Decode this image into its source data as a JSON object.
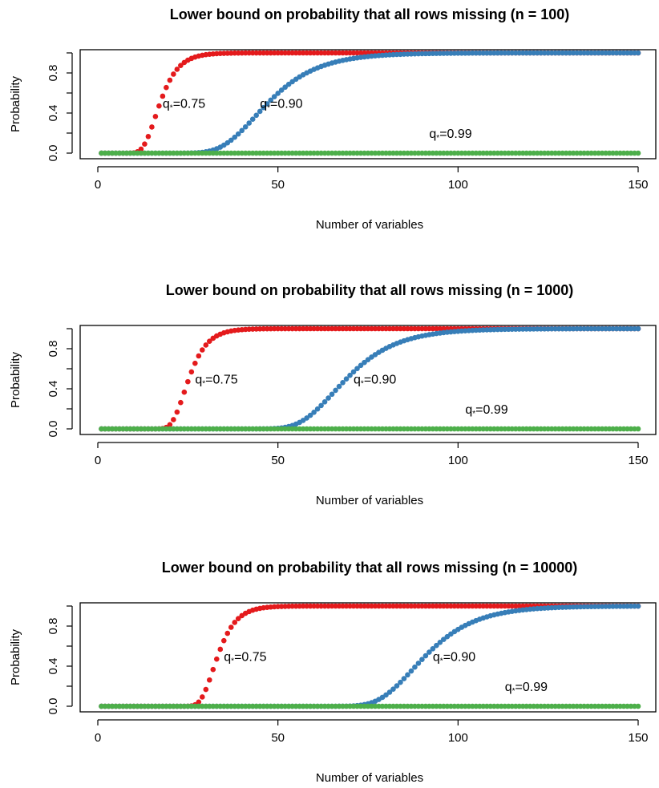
{
  "chart_data": [
    {
      "type": "scatter",
      "title": "Lower bound on probability that all rows missing (n = 100)",
      "xlabel": "Number of variables",
      "ylabel": "Probability",
      "xlim": [
        1,
        150
      ],
      "ylim": [
        0,
        1
      ],
      "x_ticks": [
        "0",
        "50",
        "100",
        "150"
      ],
      "y_ticks": [
        "0.0",
        "0.4",
        "0.8"
      ],
      "n": 100,
      "series": [
        {
          "name": "q*=0.75",
          "q": 0.75,
          "color": "#e41a1c",
          "x_range": [
            1,
            150
          ],
          "label": {
            "main": "q",
            "sub": "*",
            "value": "=0.75",
            "x": 18,
            "y": 0.5
          }
        },
        {
          "name": "q*=0.90",
          "q": 0.9,
          "color": "#377eb8",
          "x_range": [
            1,
            150
          ],
          "label": {
            "main": "q",
            "sub": "*",
            "value": "=0.90",
            "x": 45,
            "y": 0.5
          }
        },
        {
          "name": "q*=0.99",
          "q": 0.99,
          "color": "#4daf4a",
          "x_range": [
            1,
            150
          ],
          "label": {
            "main": "q",
            "sub": "*",
            "value": "=0.99",
            "x": 92,
            "y": 0.2
          }
        }
      ]
    },
    {
      "type": "scatter",
      "title": "Lower bound on probability that all rows missing (n = 1000)",
      "xlabel": "Number of variables",
      "ylabel": "Probability",
      "xlim": [
        1,
        150
      ],
      "ylim": [
        0,
        1
      ],
      "x_ticks": [
        "0",
        "50",
        "100",
        "150"
      ],
      "y_ticks": [
        "0.0",
        "0.4",
        "0.8"
      ],
      "n": 1000,
      "series": [
        {
          "name": "q*=0.75",
          "q": 0.75,
          "color": "#e41a1c",
          "x_range": [
            1,
            150
          ],
          "label": {
            "main": "q",
            "sub": "*",
            "value": "=0.75",
            "x": 27,
            "y": 0.5
          }
        },
        {
          "name": "q*=0.90",
          "q": 0.9,
          "color": "#377eb8",
          "x_range": [
            1,
            150
          ],
          "label": {
            "main": "q",
            "sub": "*",
            "value": "=0.90",
            "x": 71,
            "y": 0.5
          }
        },
        {
          "name": "q*=0.99",
          "q": 0.99,
          "color": "#4daf4a",
          "x_range": [
            1,
            150
          ],
          "label": {
            "main": "q",
            "sub": "*",
            "value": "=0.99",
            "x": 102,
            "y": 0.2
          }
        }
      ]
    },
    {
      "type": "scatter",
      "title": "Lower bound on probability that all rows missing (n = 10000)",
      "xlabel": "Number of variables",
      "ylabel": "Probability",
      "xlim": [
        1,
        150
      ],
      "ylim": [
        0,
        1
      ],
      "x_ticks": [
        "0",
        "50",
        "100",
        "150"
      ],
      "y_ticks": [
        "0.0",
        "0.4",
        "0.8"
      ],
      "n": 10000,
      "series": [
        {
          "name": "q*=0.75",
          "q": 0.75,
          "color": "#e41a1c",
          "x_range": [
            1,
            150
          ],
          "label": {
            "main": "q",
            "sub": "*",
            "value": "=0.75",
            "x": 35,
            "y": 0.5
          }
        },
        {
          "name": "q*=0.90",
          "q": 0.9,
          "color": "#377eb8",
          "x_range": [
            1,
            150
          ],
          "label": {
            "main": "q",
            "sub": "*",
            "value": "=0.90",
            "x": 93,
            "y": 0.5
          }
        },
        {
          "name": "q*=0.99",
          "q": 0.99,
          "color": "#4daf4a",
          "x_range": [
            1,
            150
          ],
          "label": {
            "main": "q",
            "sub": "*",
            "value": "=0.99",
            "x": 113,
            "y": 0.2
          }
        }
      ]
    }
  ]
}
